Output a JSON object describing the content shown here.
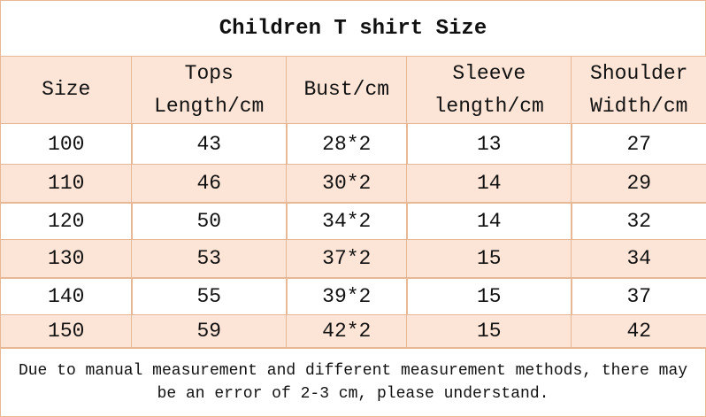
{
  "title": "Children T shirt Size",
  "table": {
    "header": [
      [
        "Size"
      ],
      [
        "Tops",
        "Length/cm"
      ],
      [
        "Bust/cm"
      ],
      [
        "Sleeve",
        "length/cm"
      ],
      [
        "Shoulder",
        "Width/cm"
      ]
    ],
    "rows": [
      [
        "100",
        "43",
        "28*2",
        "13",
        "27"
      ],
      [
        "110",
        "46",
        "30*2",
        "14",
        "29"
      ],
      [
        "120",
        "50",
        "34*2",
        "14",
        "32"
      ],
      [
        "130",
        "53",
        "37*2",
        "15",
        "34"
      ],
      [
        "140",
        "55",
        "39*2",
        "15",
        "37"
      ],
      [
        "150",
        "59",
        "42*2",
        "15",
        "42"
      ]
    ]
  },
  "footnote": "Due to manual measurement and different measurement methods, there may be an error of 2-3 cm, please understand."
}
